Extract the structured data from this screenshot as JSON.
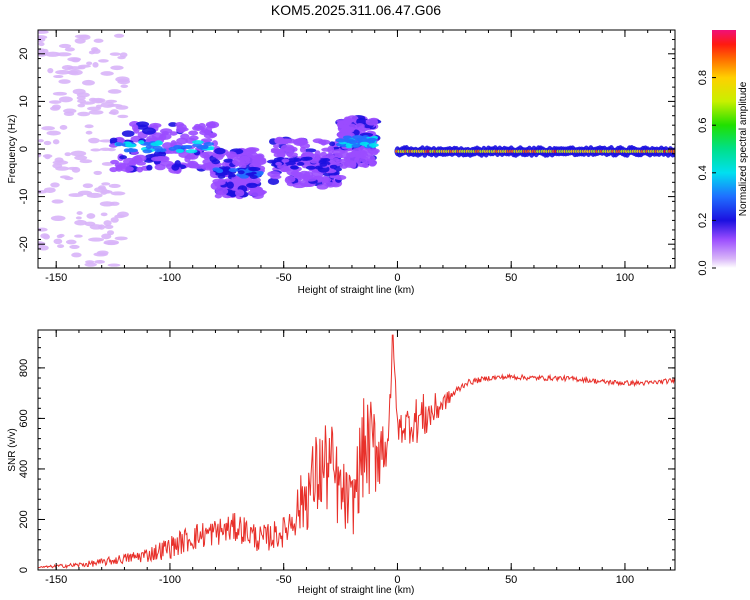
{
  "title": "KOM5.2025.311.06.47.G06",
  "colors": {
    "snr_line": "#e8302a",
    "axes": "#000000",
    "background": "#ffffff"
  },
  "chart_data": [
    {
      "type": "heatmap",
      "name": "spectrogram",
      "xlabel": "Height of straight line (km)",
      "ylabel": "Frequency (Hz)",
      "xlim": [
        -158,
        122
      ],
      "ylim": [
        -25,
        25
      ],
      "xticks": [
        -150,
        -100,
        -50,
        0,
        50,
        100
      ],
      "yticks": [
        -20,
        -10,
        0,
        10,
        20
      ],
      "colorbar": {
        "label": "Normalized spectral amplitude",
        "range": [
          0,
          1
        ],
        "ticks": [
          "0.0",
          "0.2",
          "0.4",
          "0.6",
          "0.8"
        ]
      },
      "features": [
        {
          "x_range": [
            -158,
            -120
          ],
          "freq_range": [
            -25,
            25
          ],
          "amplitude": 0.05
        },
        {
          "x_range": [
            -125,
            -80
          ],
          "center_hz": 0.5,
          "amplitude": 0.3
        },
        {
          "x_range": [
            -80,
            -60
          ],
          "center_hz": -5,
          "amplitude": 0.2
        },
        {
          "x_range": [
            -55,
            -25
          ],
          "center_hz": -3,
          "amplitude": 0.15
        },
        {
          "x_range": [
            -25,
            -10
          ],
          "center_hz": 1.5,
          "amplitude": 0.3
        },
        {
          "x_range": [
            0,
            122
          ],
          "center_hz": -0.5,
          "amplitude": 0.95
        }
      ]
    },
    {
      "type": "line",
      "name": "snr",
      "xlabel": "Height of straight line (km)",
      "ylabel": "SNR (v/v)",
      "xlim": [
        -158,
        122
      ],
      "ylim": [
        0,
        950
      ],
      "xticks": [
        -150,
        -100,
        -50,
        0,
        50,
        100
      ],
      "yticks": [
        0,
        200,
        400,
        600,
        800
      ],
      "series": [
        {
          "name": "SNR",
          "x": [
            -158,
            -150,
            -140,
            -130,
            -120,
            -110,
            -100,
            -90,
            -80,
            -70,
            -60,
            -50,
            -45,
            -40,
            -35,
            -30,
            -25,
            -20,
            -15,
            -10,
            -5,
            -3,
            -2,
            0,
            5,
            10,
            15,
            20,
            25,
            30,
            40,
            50,
            60,
            70,
            80,
            90,
            100,
            110,
            122
          ],
          "y": [
            10,
            15,
            20,
            30,
            45,
            60,
            90,
            130,
            150,
            170,
            120,
            150,
            220,
            300,
            380,
            420,
            300,
            250,
            480,
            480,
            500,
            620,
            930,
            560,
            580,
            600,
            620,
            660,
            700,
            740,
            760,
            765,
            760,
            760,
            755,
            745,
            740,
            740,
            750
          ],
          "noise": [
            3,
            6,
            10,
            15,
            20,
            30,
            45,
            55,
            55,
            60,
            55,
            60,
            90,
            150,
            180,
            200,
            150,
            130,
            200,
            200,
            120,
            100,
            0,
            60,
            80,
            100,
            80,
            40,
            20,
            12,
            10,
            10,
            10,
            10,
            10,
            10,
            10,
            10,
            10
          ]
        }
      ]
    }
  ]
}
